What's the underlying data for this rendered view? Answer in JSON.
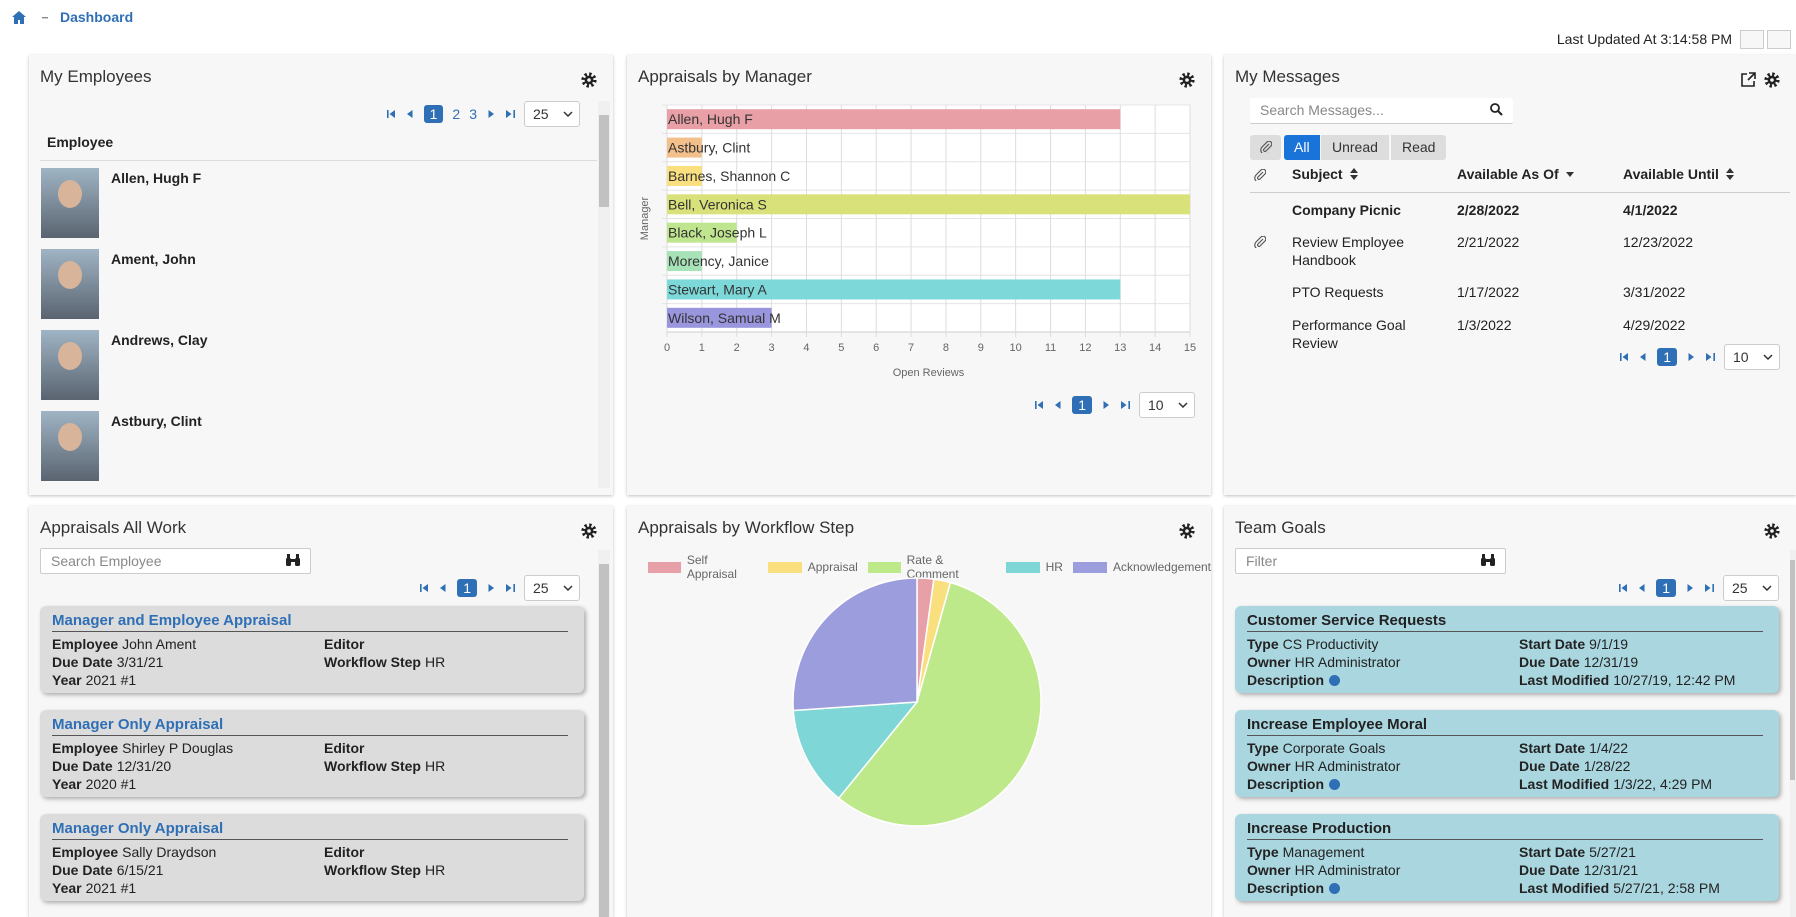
{
  "header": {
    "breadcrumb": "Dashboard",
    "last_updated": "Last Updated At 3:14:58 PM"
  },
  "employees": {
    "title": "My Employees",
    "pages": [
      "1",
      "2",
      "3"
    ],
    "page_size": "25",
    "column": "Employee",
    "rows": [
      "Allen, Hugh F",
      "Ament, John",
      "Andrews, Clay",
      "Astbury, Clint"
    ]
  },
  "messages": {
    "title": "My Messages",
    "search_placeholder": "Search Messages...",
    "filters": [
      "All",
      "Unread",
      "Read"
    ],
    "columns": [
      "Subject",
      "Available As Of",
      "Available Until"
    ],
    "rows": [
      {
        "subject": "Company Picnic",
        "available_as_of": "2/28/2022",
        "available_until": "4/1/2022",
        "unread": true,
        "attachment": false
      },
      {
        "subject": "Review Employee Handbook",
        "available_as_of": "2/21/2022",
        "available_until": "12/23/2022",
        "unread": false,
        "attachment": true
      },
      {
        "subject": "PTO Requests",
        "available_as_of": "1/17/2022",
        "available_until": "3/31/2022",
        "unread": false,
        "attachment": false
      },
      {
        "subject": "Performance Goal Review",
        "available_as_of": "1/3/2022",
        "available_until": "4/29/2022",
        "unread": false,
        "attachment": false
      }
    ],
    "page": "1",
    "page_size": "10"
  },
  "appraisals": {
    "title": "Appraisals All Work",
    "search_placeholder": "Search Employee",
    "page": "1",
    "page_size": "25",
    "cards": [
      {
        "title": "Manager and Employee Appraisal",
        "left": [
          {
            "label": "Employee",
            "value": "John Ament"
          },
          {
            "label": "Due Date",
            "value": "3/31/21"
          },
          {
            "label": "Year",
            "value": "2021 #1"
          }
        ],
        "right": [
          {
            "label": "Editor"
          },
          {
            "label": "Workflow Step",
            "value": "HR"
          }
        ]
      },
      {
        "title": "Manager Only Appraisal",
        "left": [
          {
            "label": "Employee",
            "value": "Shirley P Douglas"
          },
          {
            "label": "Due Date",
            "value": "12/31/20"
          },
          {
            "label": "Year",
            "value": "2020 #1"
          }
        ],
        "right": [
          {
            "label": "Editor"
          },
          {
            "label": "Workflow Step",
            "value": "HR"
          }
        ]
      },
      {
        "title": "Manager Only Appraisal",
        "left": [
          {
            "label": "Employee",
            "value": "Sally Draydson"
          },
          {
            "label": "Due Date",
            "value": "6/15/21"
          },
          {
            "label": "Year",
            "value": "2021 #1"
          }
        ],
        "right": [
          {
            "label": "Editor"
          },
          {
            "label": "Workflow Step",
            "value": "HR"
          }
        ]
      }
    ]
  },
  "team_goals": {
    "title": "Team Goals",
    "search_placeholder": "Filter",
    "page": "1",
    "page_size": "25",
    "cards": [
      {
        "title": "Customer Service Requests",
        "left": [
          {
            "label": "Type",
            "value": "CS Productivity"
          },
          {
            "label": "Owner",
            "value": "HR Administrator"
          },
          {
            "label": "Description",
            "help": true
          }
        ],
        "right": [
          {
            "label": "Start Date",
            "value": "9/1/19"
          },
          {
            "label": "Due Date",
            "value": "12/31/19"
          },
          {
            "label": "Last Modified",
            "value": "10/27/19, 12:42 PM"
          }
        ]
      },
      {
        "title": "Increase Employee Moral",
        "left": [
          {
            "label": "Type",
            "value": "Corporate Goals"
          },
          {
            "label": "Owner",
            "value": "HR Administrator"
          },
          {
            "label": "Description",
            "help": true
          }
        ],
        "right": [
          {
            "label": "Start Date",
            "value": "1/4/22"
          },
          {
            "label": "Due Date",
            "value": "1/28/22"
          },
          {
            "label": "Last Modified",
            "value": "1/3/22, 4:29 PM"
          }
        ]
      },
      {
        "title": "Increase Production",
        "left": [
          {
            "label": "Type",
            "value": "Management"
          },
          {
            "label": "Owner",
            "value": "HR Administrator"
          },
          {
            "label": "Description",
            "help": true
          }
        ],
        "right": [
          {
            "label": "Start Date",
            "value": "5/27/21"
          },
          {
            "label": "Due Date",
            "value": "12/31/21"
          },
          {
            "label": "Last Modified",
            "value": "5/27/21, 2:58 PM"
          }
        ]
      }
    ]
  },
  "chart_data": [
    {
      "type": "bar",
      "orientation": "horizontal",
      "title": "Appraisals by Manager",
      "x_label": "Open Reviews",
      "y_label": "Manager",
      "categories": [
        "Allen, Hugh F",
        "Astbury, Clint",
        "Barnes, Shannon C",
        "Bell, Veronica S",
        "Black, Joseph L",
        "Morency, Janice",
        "Stewart, Mary A",
        "Wilson, Samual M"
      ],
      "values": [
        13,
        1,
        1,
        15,
        2,
        1,
        13,
        3
      ],
      "colors": [
        "#e8a0a6",
        "#f3c08c",
        "#f9df7e",
        "#d9e27a",
        "#bfe58f",
        "#a8e3b8",
        "#7dd9d9",
        "#9a96dd"
      ],
      "xlim": [
        0,
        15
      ],
      "xticks": [
        0,
        1,
        2,
        3,
        4,
        5,
        6,
        7,
        8,
        9,
        10,
        11,
        12,
        13,
        14,
        15
      ],
      "grid": true,
      "pager": {
        "page": "1",
        "page_size": "10"
      }
    },
    {
      "type": "pie",
      "title": "Appraisals by Workflow Step",
      "categories": [
        "Self Appraisal",
        "Appraisal",
        "Rate & Comment",
        "HR",
        "Acknowledgement"
      ],
      "values": [
        1,
        1,
        26,
        6,
        12
      ],
      "colors": [
        "#e8a0a8",
        "#f9df7e",
        "#bde98b",
        "#7fd6d6",
        "#9c9ddc"
      ],
      "legend": "top"
    }
  ]
}
